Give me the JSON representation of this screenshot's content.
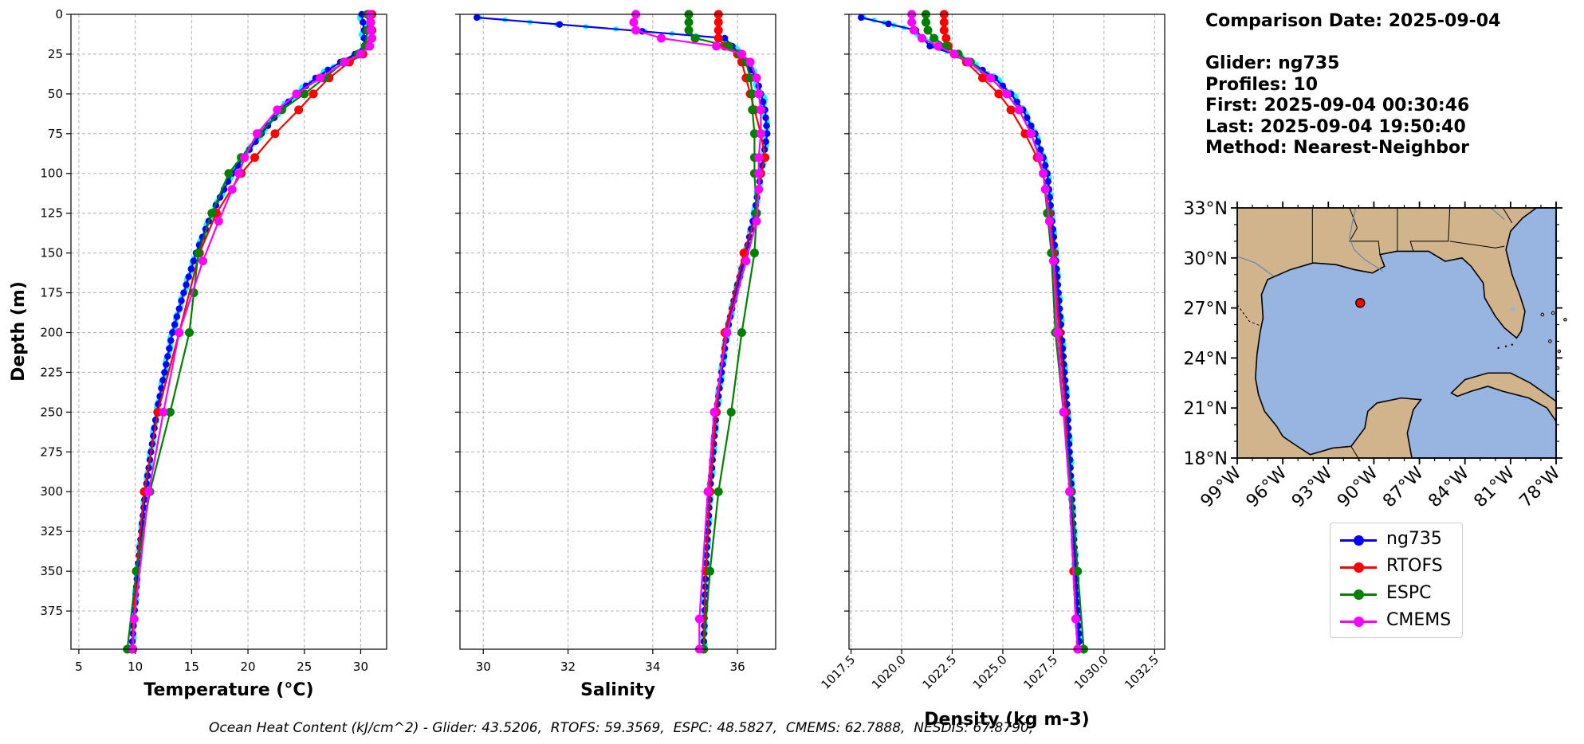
{
  "info": {
    "comparison_date": "Comparison Date: 2025-09-04",
    "glider": "Glider: ng735",
    "profiles": "Profiles: 10",
    "first": "First: 2025-09-04 00:30:46",
    "last": "Last: 2025-09-04 19:50:40",
    "method": "Method: Nearest-Neighbor"
  },
  "footer": "Ocean Heat Content (kJ/cm^2) - Glider: 43.5206,  RTOFS: 59.3569,  ESPC: 48.5827,  CMEMS: 62.7888,  NESDIS: 67.8790,",
  "colors": {
    "glider": "#0000ff",
    "glider_points": "#00ffff",
    "rtofs": "#ff0000",
    "espc": "#008000",
    "cmems": "#ff00ff",
    "land": "#d2b48c",
    "ocean": "#98b4e0",
    "grid": "#b0b0b0"
  },
  "legend": [
    {
      "label": "ng735",
      "color": "#0000ff"
    },
    {
      "label": "RTOFS",
      "color": "#ff0000"
    },
    {
      "label": "ESPC",
      "color": "#008000"
    },
    {
      "label": "CMEMS",
      "color": "#ff00ff"
    }
  ],
  "chart_data": [
    {
      "type": "line",
      "xlabel": "Temperature (°C)",
      "ylabel": "Depth (m)",
      "xlim": [
        4.3,
        32.3
      ],
      "ylim": [
        399,
        0
      ],
      "xticks": [
        5,
        10,
        15,
        20,
        25,
        30
      ],
      "yticks": [
        0,
        25,
        50,
        75,
        100,
        125,
        150,
        175,
        200,
        225,
        250,
        275,
        300,
        325,
        350,
        375
      ],
      "grid": true,
      "series": [
        {
          "name": "ng735",
          "depth": [
            0,
            10,
            20,
            25,
            30,
            40,
            50,
            60,
            75,
            90,
            100,
            125,
            150,
            175,
            200,
            250,
            300,
            350,
            399
          ],
          "values": [
            30.1,
            30.3,
            30.3,
            29.5,
            28.2,
            26.0,
            24.3,
            22.9,
            21.2,
            19.6,
            18.6,
            16.8,
            15.4,
            14.3,
            13.3,
            11.9,
            10.9,
            10.2,
            9.7
          ]
        },
        {
          "name": "RTOFS",
          "depth": [
            0,
            10,
            20,
            25,
            30,
            40,
            50,
            60,
            75,
            90,
            100,
            125,
            150,
            200,
            250,
            300,
            350,
            399
          ],
          "values": [
            31.0,
            31.0,
            30.5,
            30.2,
            29.0,
            27.2,
            25.8,
            24.5,
            22.4,
            20.6,
            19.4,
            17.2,
            15.7,
            13.9,
            12.0,
            10.8,
            10.1,
            9.7
          ]
        },
        {
          "name": "ESPC",
          "depth": [
            0,
            10,
            20,
            25,
            30,
            40,
            50,
            60,
            75,
            90,
            100,
            125,
            150,
            175,
            200,
            250,
            300,
            350,
            399
          ],
          "values": [
            30.6,
            30.6,
            30.4,
            29.8,
            28.5,
            26.8,
            25.0,
            23.0,
            21.0,
            19.4,
            18.3,
            16.8,
            15.6,
            15.2,
            14.8,
            13.1,
            11.3,
            10.1,
            9.3
          ]
        },
        {
          "name": "CMEMS",
          "depth": [
            0,
            5,
            10,
            15,
            20,
            25,
            30,
            40,
            50,
            60,
            75,
            90,
            100,
            110,
            130,
            155,
            200,
            250,
            300,
            380,
            399
          ],
          "values": [
            30.8,
            30.9,
            30.9,
            31.0,
            30.8,
            30.0,
            28.6,
            26.4,
            24.3,
            22.6,
            20.8,
            19.7,
            19.2,
            18.6,
            17.4,
            16.0,
            13.9,
            12.5,
            11.2,
            9.9,
            9.8
          ]
        }
      ]
    },
    {
      "type": "line",
      "xlabel": "Salinity",
      "xlim": [
        29.45,
        36.9
      ],
      "ylim": [
        399,
        0
      ],
      "xticks": [
        30,
        32,
        34,
        36
      ],
      "grid": true,
      "series": [
        {
          "name": "ng735",
          "depth": [
            2,
            15,
            25,
            40,
            60,
            75,
            100,
            125,
            150,
            175,
            200,
            250,
            300,
            350,
            399
          ],
          "values": [
            29.85,
            35.7,
            36.05,
            36.45,
            36.65,
            36.7,
            36.55,
            36.4,
            36.2,
            35.95,
            35.75,
            35.5,
            35.35,
            35.25,
            35.2
          ]
        },
        {
          "name": "RTOFS",
          "depth": [
            0,
            5,
            10,
            15,
            20,
            25,
            30,
            40,
            50,
            60,
            75,
            90,
            100,
            125,
            150,
            200,
            250,
            300,
            350,
            399
          ],
          "values": [
            35.55,
            35.55,
            35.55,
            35.55,
            35.7,
            36.0,
            36.1,
            36.2,
            36.3,
            36.4,
            36.55,
            36.65,
            36.55,
            36.45,
            36.15,
            35.7,
            35.5,
            35.35,
            35.25,
            35.2
          ]
        },
        {
          "name": "ESPC",
          "depth": [
            0,
            5,
            10,
            15,
            20,
            25,
            30,
            40,
            50,
            60,
            75,
            90,
            100,
            125,
            150,
            200,
            250,
            300,
            350,
            399
          ],
          "values": [
            34.85,
            34.85,
            34.85,
            35.0,
            35.8,
            36.05,
            36.2,
            36.3,
            36.35,
            36.35,
            36.4,
            36.4,
            36.4,
            36.45,
            36.4,
            36.1,
            35.85,
            35.55,
            35.35,
            35.2
          ]
        },
        {
          "name": "CMEMS",
          "depth": [
            0,
            5,
            10,
            15,
            20,
            25,
            30,
            40,
            50,
            60,
            75,
            90,
            100,
            110,
            130,
            155,
            200,
            250,
            300,
            380,
            399
          ],
          "values": [
            33.6,
            33.55,
            33.6,
            34.2,
            35.5,
            36.1,
            36.3,
            36.45,
            36.5,
            36.55,
            36.55,
            36.5,
            36.5,
            36.5,
            36.45,
            36.2,
            35.75,
            35.45,
            35.3,
            35.1,
            35.1
          ]
        }
      ]
    },
    {
      "type": "line",
      "xlabel": "Density (kg m-3)",
      "xlim": [
        1017.4,
        1033.0
      ],
      "ylim": [
        399,
        0
      ],
      "xticks": [
        1017.5,
        1020.0,
        1022.5,
        1025.0,
        1027.5,
        1030.0,
        1032.5
      ],
      "grid": true,
      "series": [
        {
          "name": "ng735",
          "depth": [
            2,
            10,
            20,
            25,
            30,
            40,
            50,
            60,
            75,
            90,
            100,
            125,
            150,
            200,
            250,
            300,
            350,
            399
          ],
          "values": [
            1018.0,
            1020.7,
            1021.4,
            1022.6,
            1023.4,
            1024.6,
            1025.4,
            1026.0,
            1026.6,
            1027.0,
            1027.2,
            1027.4,
            1027.6,
            1027.9,
            1028.2,
            1028.4,
            1028.6,
            1028.8
          ]
        },
        {
          "name": "RTOFS",
          "depth": [
            0,
            5,
            10,
            15,
            20,
            25,
            30,
            40,
            50,
            60,
            75,
            90,
            100,
            125,
            150,
            200,
            250,
            300,
            350,
            399
          ],
          "values": [
            1022.1,
            1022.1,
            1022.1,
            1022.2,
            1022.3,
            1022.6,
            1023.2,
            1024.0,
            1024.8,
            1025.4,
            1026.1,
            1026.7,
            1027.0,
            1027.3,
            1027.5,
            1027.8,
            1028.1,
            1028.3,
            1028.5,
            1028.7
          ]
        },
        {
          "name": "ESPC",
          "depth": [
            0,
            5,
            10,
            15,
            20,
            25,
            30,
            40,
            50,
            60,
            75,
            90,
            100,
            125,
            150,
            200,
            250,
            300,
            350,
            399
          ],
          "values": [
            1021.2,
            1021.2,
            1021.3,
            1021.6,
            1022.2,
            1022.8,
            1023.4,
            1024.4,
            1025.2,
            1025.8,
            1026.4,
            1026.8,
            1027.0,
            1027.2,
            1027.4,
            1027.6,
            1028.0,
            1028.4,
            1028.7,
            1029.0
          ]
        },
        {
          "name": "CMEMS",
          "depth": [
            0,
            5,
            10,
            15,
            20,
            25,
            30,
            40,
            50,
            60,
            75,
            90,
            100,
            110,
            130,
            155,
            200,
            250,
            300,
            380,
            399
          ],
          "values": [
            1020.5,
            1020.5,
            1020.6,
            1021.0,
            1021.8,
            1022.6,
            1023.3,
            1024.4,
            1025.2,
            1025.8,
            1026.4,
            1026.8,
            1027.0,
            1027.1,
            1027.3,
            1027.5,
            1027.7,
            1028.0,
            1028.3,
            1028.6,
            1028.7
          ]
        }
      ]
    }
  ],
  "map": {
    "lat_ticks": [
      "33°N",
      "30°N",
      "27°N",
      "24°N",
      "21°N",
      "18°N"
    ],
    "lon_ticks": [
      "99°W",
      "96°W",
      "93°W",
      "90°W",
      "87°W",
      "84°W",
      "81°W",
      "78°W"
    ],
    "extent": {
      "lon": [
        -99,
        -78
      ],
      "lat": [
        18,
        33
      ]
    },
    "glider_position": {
      "lon": -90.9,
      "lat": 27.3
    }
  }
}
